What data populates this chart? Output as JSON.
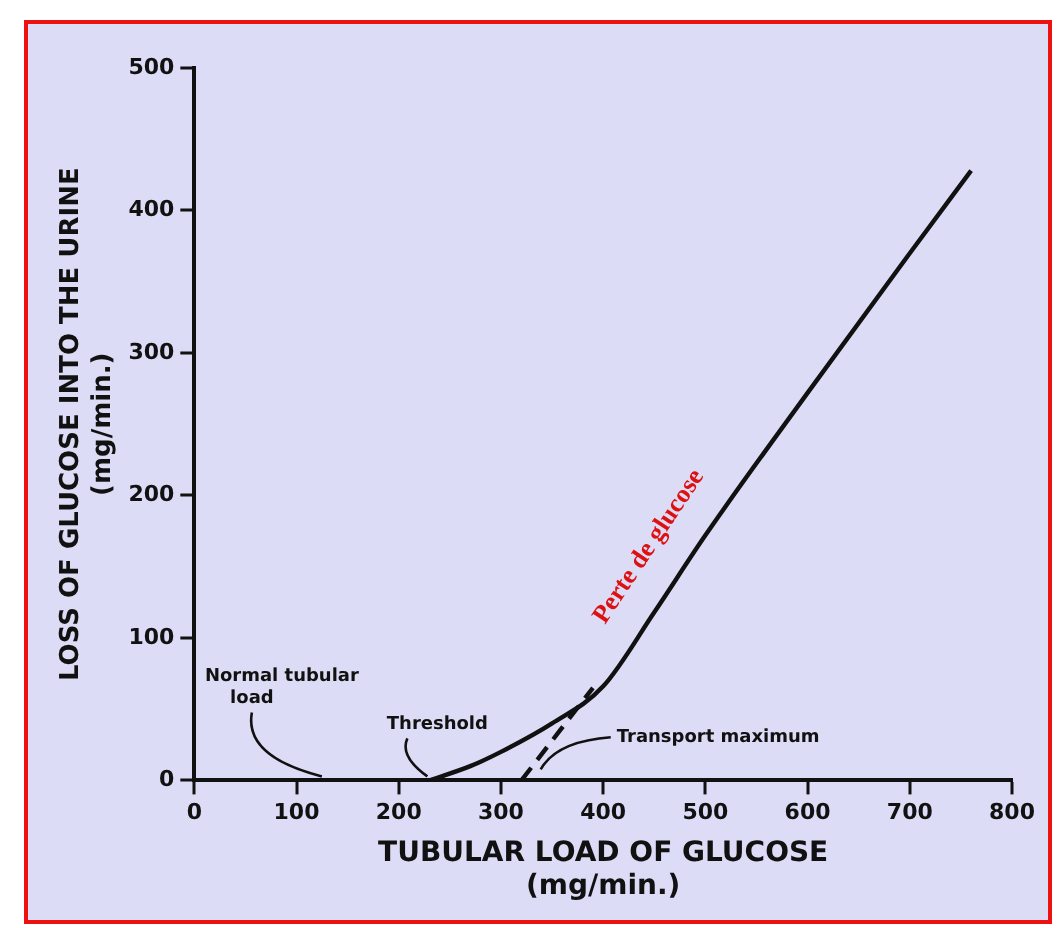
{
  "chart_data": {
    "type": "line",
    "xlabel": "TUBULAR LOAD OF GLUCOSE\n(mg/min.)",
    "ylabel": "LOSS OF GLUCOSE INTO THE URINE\n(mg/min.)",
    "xlim": [
      0,
      800
    ],
    "xticks": [
      0,
      100,
      200,
      300,
      400,
      500,
      600,
      700,
      800
    ],
    "ylim": [
      0,
      500
    ],
    "yticks": [
      0,
      100,
      200,
      300,
      400,
      500
    ],
    "grid": false,
    "legend": false,
    "marker": "none",
    "series": [
      {
        "name": "Perte de glucose",
        "color": "#111111",
        "line_style": "solid",
        "x": [
          230,
          270,
          300,
          350,
          400,
          450,
          500,
          600,
          700,
          760
        ],
        "values": [
          0,
          10,
          20,
          40,
          66,
          118,
          172,
          272,
          370,
          428
        ]
      },
      {
        "color": "#111111",
        "line_style": "dashed",
        "x": [
          320,
          390
        ],
        "values": [
          0,
          65
        ]
      }
    ],
    "annotations": [
      "Normal tubular load",
      {
        "text": "Threshold",
        "x": 228,
        "y": 0
      },
      {
        "text": "Transport maximum",
        "x": 335,
        "y": 5
      }
    ]
  }
}
